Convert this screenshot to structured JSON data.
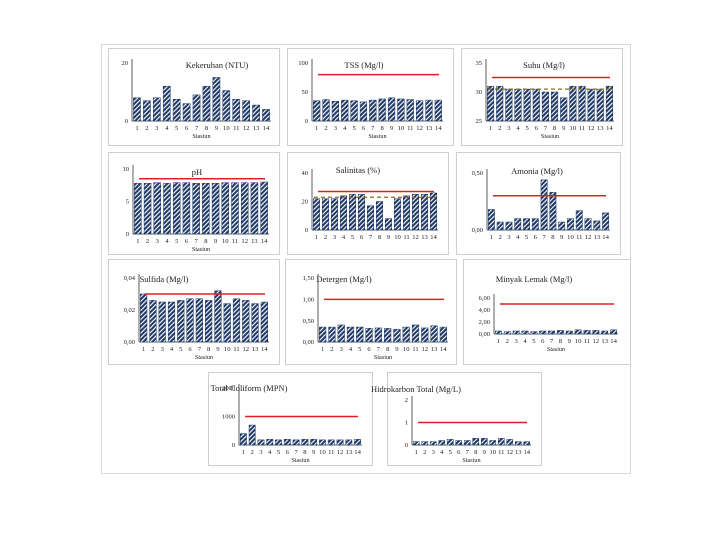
{
  "colors": {
    "bar_fill": "#1f3a68",
    "bar_stripe": "#ffffff",
    "threshold": "#e02020",
    "dashed": "#8b6d1a",
    "panel_border": "#cfcfcf"
  },
  "chart_data": [
    {
      "type": "bar",
      "title": "Kekeruhan (NTU)",
      "xlabel": "Stasiun",
      "ylabel": "",
      "ylim": [
        0,
        20
      ],
      "yticks": [
        "0",
        "20"
      ],
      "categories": [
        "1",
        "2",
        "3",
        "4",
        "5",
        "6",
        "7",
        "8",
        "9",
        "10",
        "11",
        "12",
        "13",
        "14"
      ],
      "values": [
        8,
        7,
        8,
        12,
        7.5,
        6,
        9,
        12,
        15,
        10.5,
        7.5,
        7,
        5.5,
        4
      ],
      "threshold": null,
      "dashed": null
    },
    {
      "type": "bar",
      "title": "TSS (Mg/l)",
      "xlabel": "Stasiun",
      "ylabel": "",
      "ylim": [
        0,
        100
      ],
      "yticks": [
        "0",
        "50",
        "100"
      ],
      "categories": [
        "1",
        "2",
        "3",
        "4",
        "5",
        "6",
        "7",
        "8",
        "9",
        "10",
        "11",
        "12",
        "13",
        "14"
      ],
      "values": [
        35,
        37,
        34,
        36,
        35,
        33,
        36,
        38,
        40,
        38,
        37,
        35,
        36,
        36
      ],
      "threshold": 80,
      "dashed": null
    },
    {
      "type": "bar",
      "title": "Suhu (Mg/l)",
      "xlabel": "Stasiun",
      "ylabel": "",
      "ylim": [
        25,
        35
      ],
      "yticks": [
        "25",
        "30",
        "35"
      ],
      "categories": [
        "1",
        "2",
        "3",
        "4",
        "5",
        "6",
        "7",
        "8",
        "9",
        "10",
        "11",
        "12",
        "13",
        "14"
      ],
      "values": [
        31,
        31,
        30.5,
        30.5,
        30.5,
        30.5,
        30,
        30,
        29,
        31,
        31,
        30.5,
        30.5,
        31
      ],
      "threshold": 32.5,
      "dashed": 30.5
    },
    {
      "type": "bar",
      "title": "pH",
      "xlabel": "Stasiun",
      "ylabel": "",
      "ylim": [
        0,
        10
      ],
      "yticks": [
        "0",
        "5",
        "10"
      ],
      "categories": [
        "1",
        "2",
        "3",
        "4",
        "5",
        "6",
        "7",
        "8",
        "9",
        "10",
        "11",
        "12",
        "13",
        "14"
      ],
      "values": [
        7.8,
        7.8,
        7.9,
        7.8,
        7.9,
        7.9,
        7.8,
        7.8,
        7.8,
        7.9,
        7.9,
        7.9,
        7.9,
        8
      ],
      "threshold": 8.5,
      "dashed": null
    },
    {
      "type": "bar",
      "title": "Salinitas (%)",
      "xlabel": "",
      "ylabel": "",
      "ylim": [
        0,
        40
      ],
      "yticks": [
        "0",
        "20",
        "40"
      ],
      "categories": [
        "1",
        "2",
        "3",
        "4",
        "5",
        "6",
        "7",
        "8",
        "9",
        "10",
        "11",
        "12",
        "13",
        "14"
      ],
      "values": [
        22,
        22,
        22,
        24,
        25,
        25,
        17,
        20,
        8,
        22,
        24,
        25,
        25,
        26
      ],
      "threshold": 27,
      "dashed": 23
    },
    {
      "type": "bar",
      "title": "Amonia (Mg/l)",
      "xlabel": "",
      "ylabel": "",
      "ylim": [
        0,
        0.5
      ],
      "yticks": [
        "0,00",
        "0,50"
      ],
      "categories": [
        "1",
        "2",
        "3",
        "4",
        "5",
        "6",
        "7",
        "8",
        "9",
        "10",
        "11",
        "12",
        "13",
        "14"
      ],
      "values": [
        0.18,
        0.07,
        0.07,
        0.1,
        0.1,
        0.1,
        0.44,
        0.33,
        0.07,
        0.1,
        0.17,
        0.1,
        0.08,
        0.15
      ],
      "threshold": 0.3,
      "dashed": null
    },
    {
      "type": "bar",
      "title": "Sulfida (Mg/l)",
      "xlabel": "Stasiun",
      "ylabel": "",
      "ylim": [
        0,
        0.04
      ],
      "yticks": [
        "0,00",
        "0,02",
        "0,04"
      ],
      "categories": [
        "1",
        "2",
        "3",
        "4",
        "5",
        "6",
        "7",
        "8",
        "9",
        "10",
        "11",
        "12",
        "13",
        "14"
      ],
      "values": [
        0.03,
        0.026,
        0.025,
        0.025,
        0.026,
        0.027,
        0.027,
        0.026,
        0.032,
        0.024,
        0.027,
        0.026,
        0.024,
        0.025
      ],
      "threshold": 0.03,
      "dashed": null
    },
    {
      "type": "bar",
      "title": "Detergen (Mg/l)",
      "xlabel": "Stasiun",
      "ylabel": "",
      "ylim": [
        0,
        1.5
      ],
      "yticks": [
        "0,00",
        "0,50",
        "1,00",
        "1,50"
      ],
      "categories": [
        "1",
        "2",
        "3",
        "4",
        "5",
        "6",
        "7",
        "8",
        "9",
        "10",
        "11",
        "12",
        "13",
        "14"
      ],
      "values": [
        0.35,
        0.35,
        0.4,
        0.35,
        0.35,
        0.32,
        0.33,
        0.32,
        0.3,
        0.35,
        0.4,
        0.33,
        0.38,
        0.35
      ],
      "threshold": 1.0,
      "dashed": null
    },
    {
      "type": "bar",
      "title": "Minyak Lemak (Mg/l)",
      "xlabel": "Stasiun",
      "ylabel": "",
      "ylim": [
        0,
        6
      ],
      "yticks": [
        "0,00",
        "2,00",
        "4,00",
        "6,00"
      ],
      "categories": [
        "1",
        "2",
        "3",
        "4",
        "5",
        "6",
        "7",
        "8",
        "9",
        "10",
        "11",
        "12",
        "13",
        "14"
      ],
      "values": [
        0.5,
        0.4,
        0.5,
        0.5,
        0.4,
        0.5,
        0.5,
        0.6,
        0.5,
        0.7,
        0.6,
        0.6,
        0.5,
        0.7
      ],
      "threshold": 5,
      "dashed": null
    },
    {
      "type": "bar",
      "title": "Total Coliform (MPN)",
      "xlabel": "Stasiun",
      "ylabel": "",
      "ylim": [
        0,
        2000
      ],
      "yticks": [
        "0",
        "1000",
        "2000"
      ],
      "categories": [
        "1",
        "2",
        "3",
        "4",
        "5",
        "6",
        "7",
        "8",
        "9",
        "10",
        "11",
        "12",
        "13",
        "14"
      ],
      "values": [
        400,
        700,
        180,
        200,
        180,
        200,
        180,
        200,
        200,
        180,
        180,
        180,
        180,
        200
      ],
      "threshold": 1000,
      "dashed": null
    },
    {
      "type": "bar",
      "title": "Hidrokarbon Total (Mg/L)",
      "xlabel": "Stasiun",
      "ylabel": "",
      "ylim": [
        0,
        2
      ],
      "yticks": [
        "0",
        "1",
        "2"
      ],
      "categories": [
        "1",
        "2",
        "3",
        "4",
        "5",
        "6",
        "7",
        "8",
        "9",
        "10",
        "11",
        "12",
        "13",
        "14"
      ],
      "values": [
        0.15,
        0.15,
        0.15,
        0.2,
        0.25,
        0.2,
        0.2,
        0.3,
        0.3,
        0.2,
        0.3,
        0.25,
        0.15,
        0.15
      ],
      "threshold": 1,
      "dashed": null
    }
  ]
}
